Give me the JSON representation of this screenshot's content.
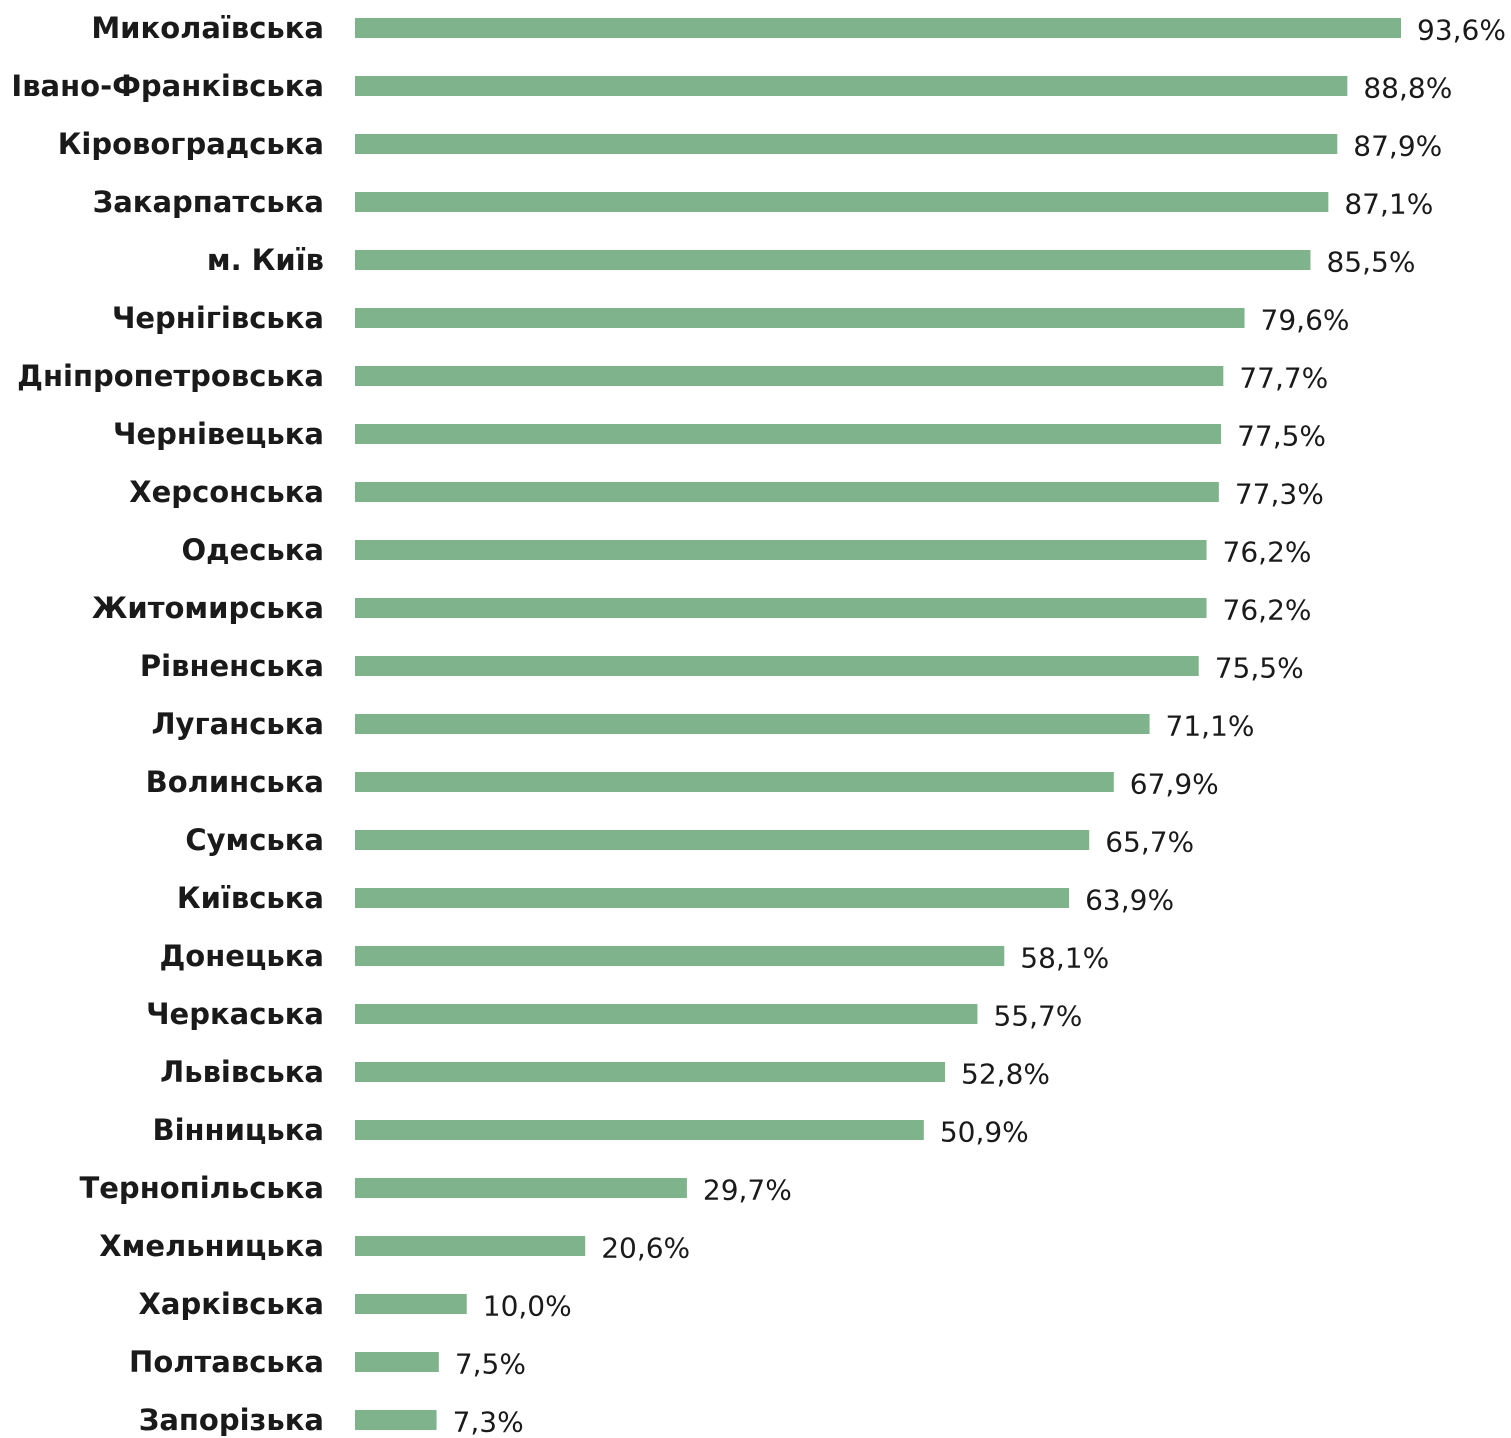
{
  "chart_data": {
    "type": "bar",
    "orientation": "horizontal",
    "title": "",
    "xlabel": "",
    "ylabel": "",
    "bar_color": "#7fb38b",
    "xlim": [
      0,
      100
    ],
    "grid": false,
    "legend": "none",
    "categories": [
      "Миколаївська",
      "Івано-Франківська",
      "Кіровоградська",
      "Закарпатська",
      "м. Київ",
      "Чернігівська",
      "Дніпропетровська",
      "Чернівецька",
      "Херсонська",
      "Одеська",
      "Житомирська",
      "Рівненська",
      "Луганська",
      "Волинська",
      "Сумська",
      "Київська",
      "Донецька",
      "Черкаська",
      "Львівська",
      "Вінницька",
      "Тернопільська",
      "Хмельницька",
      "Харківська",
      "Полтавська",
      "Запорізька"
    ],
    "values": [
      93.6,
      88.8,
      87.9,
      87.1,
      85.5,
      79.6,
      77.7,
      77.5,
      77.3,
      76.2,
      76.2,
      75.5,
      71.1,
      67.9,
      65.7,
      63.9,
      58.1,
      55.7,
      52.8,
      50.9,
      29.7,
      20.6,
      10.0,
      7.5,
      7.3
    ],
    "value_labels": [
      "93,6%",
      "88,8%",
      "87,9%",
      "87,1%",
      "85,5%",
      "79,6%",
      "77,7%",
      "77,5%",
      "77,3%",
      "76,2%",
      "76,2%",
      "75,5%",
      "71,1%",
      "67,9%",
      "65,7%",
      "63,9%",
      "58,1%",
      "55,7%",
      "52,8%",
      "50,9%",
      "29,7%",
      "20,6%",
      "10,0%",
      "7,5%",
      "7,3%"
    ]
  }
}
